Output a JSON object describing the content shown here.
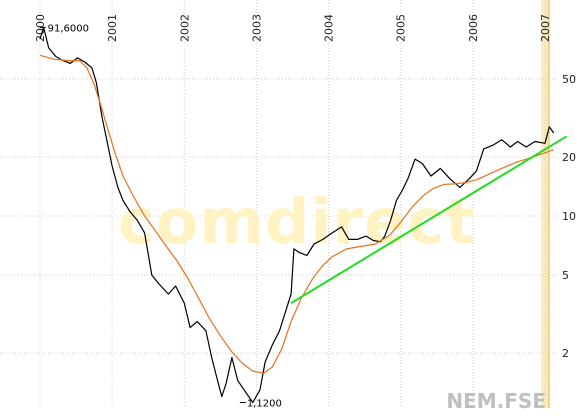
{
  "chart_data": {
    "type": "line",
    "title": "",
    "xlabel": "",
    "ylabel": "",
    "watermark": "comdirect",
    "ticker": "NEM.FSE",
    "x_tick_labels": [
      "2000",
      "2001",
      "2002",
      "2003",
      "2004",
      "2005",
      "2006",
      "2007"
    ],
    "y_scale": "log",
    "ylim": [
      1.05,
      115
    ],
    "xlim": [
      2000.0,
      2007.3
    ],
    "y_ticks": [
      2,
      5,
      10,
      20,
      50
    ],
    "y_tick_labels": [
      "2",
      "5",
      "10",
      "20",
      "50"
    ],
    "grid": true,
    "high_label": "91,6000",
    "low_label": "1,1200",
    "high": {
      "x": 2000.05,
      "y": 91.6
    },
    "low": {
      "x": 2002.95,
      "y": 1.12
    },
    "current_period_marker_x": 2007.0,
    "series": [
      {
        "key": "price",
        "color": "#000000",
        "points": [
          [
            2000.0,
            80
          ],
          [
            2000.05,
            91.6
          ],
          [
            2000.12,
            72
          ],
          [
            2000.22,
            65
          ],
          [
            2000.32,
            62
          ],
          [
            2000.42,
            60
          ],
          [
            2000.52,
            64
          ],
          [
            2000.62,
            61
          ],
          [
            2000.72,
            57
          ],
          [
            2000.78,
            48
          ],
          [
            2000.86,
            32
          ],
          [
            2000.93,
            24
          ],
          [
            2001.0,
            18
          ],
          [
            2001.08,
            14
          ],
          [
            2001.15,
            12
          ],
          [
            2001.25,
            10.5
          ],
          [
            2001.35,
            9.5
          ],
          [
            2001.45,
            8.2
          ],
          [
            2001.55,
            5.0
          ],
          [
            2001.65,
            4.5
          ],
          [
            2001.78,
            4.0
          ],
          [
            2001.88,
            4.4
          ],
          [
            2002.0,
            3.6
          ],
          [
            2002.08,
            2.7
          ],
          [
            2002.18,
            2.9
          ],
          [
            2002.3,
            2.6
          ],
          [
            2002.38,
            1.9
          ],
          [
            2002.45,
            1.5
          ],
          [
            2002.52,
            1.2
          ],
          [
            2002.58,
            1.4
          ],
          [
            2002.66,
            1.9
          ],
          [
            2002.74,
            1.45
          ],
          [
            2002.84,
            1.28
          ],
          [
            2002.95,
            1.12
          ],
          [
            2003.05,
            1.3
          ],
          [
            2003.12,
            1.8
          ],
          [
            2003.22,
            2.2
          ],
          [
            2003.32,
            2.6
          ],
          [
            2003.42,
            3.4
          ],
          [
            2003.48,
            4.0
          ],
          [
            2003.52,
            6.8
          ],
          [
            2003.6,
            6.5
          ],
          [
            2003.7,
            6.3
          ],
          [
            2003.8,
            7.2
          ],
          [
            2003.92,
            7.6
          ],
          [
            2004.05,
            8.2
          ],
          [
            2004.18,
            8.8
          ],
          [
            2004.28,
            7.6
          ],
          [
            2004.4,
            7.6
          ],
          [
            2004.52,
            7.9
          ],
          [
            2004.62,
            7.5
          ],
          [
            2004.72,
            7.4
          ],
          [
            2004.78,
            7.9
          ],
          [
            2004.86,
            9.5
          ],
          [
            2004.94,
            12.0
          ],
          [
            2005.02,
            13.5
          ],
          [
            2005.1,
            15.5
          ],
          [
            2005.2,
            19.5
          ],
          [
            2005.3,
            18.5
          ],
          [
            2005.42,
            16.0
          ],
          [
            2005.55,
            17.5
          ],
          [
            2005.68,
            15.5
          ],
          [
            2005.82,
            14.0
          ],
          [
            2005.95,
            15.5
          ],
          [
            2006.05,
            17.0
          ],
          [
            2006.15,
            22.0
          ],
          [
            2006.28,
            23.0
          ],
          [
            2006.4,
            24.5
          ],
          [
            2006.52,
            22.5
          ],
          [
            2006.62,
            24.0
          ],
          [
            2006.74,
            22.5
          ],
          [
            2006.86,
            24.0
          ],
          [
            2007.0,
            23.5
          ],
          [
            2007.06,
            28.5
          ],
          [
            2007.12,
            26.5
          ]
        ]
      },
      {
        "key": "moving-average",
        "color": "#e87020",
        "points": [
          [
            2000.0,
            66
          ],
          [
            2000.2,
            63
          ],
          [
            2000.4,
            62
          ],
          [
            2000.55,
            62
          ],
          [
            2000.65,
            57
          ],
          [
            2000.75,
            47
          ],
          [
            2000.85,
            36
          ],
          [
            2000.95,
            27
          ],
          [
            2001.05,
            20.5
          ],
          [
            2001.15,
            16
          ],
          [
            2001.3,
            12.5
          ],
          [
            2001.45,
            10
          ],
          [
            2001.6,
            8.4
          ],
          [
            2001.75,
            7.0
          ],
          [
            2001.9,
            5.9
          ],
          [
            2002.05,
            4.8
          ],
          [
            2002.2,
            3.8
          ],
          [
            2002.35,
            3.0
          ],
          [
            2002.5,
            2.45
          ],
          [
            2002.65,
            2.05
          ],
          [
            2002.8,
            1.78
          ],
          [
            2002.95,
            1.62
          ],
          [
            2003.1,
            1.58
          ],
          [
            2003.22,
            1.7
          ],
          [
            2003.35,
            2.1
          ],
          [
            2003.48,
            2.9
          ],
          [
            2003.62,
            3.8
          ],
          [
            2003.78,
            4.8
          ],
          [
            2003.92,
            5.6
          ],
          [
            2004.05,
            6.2
          ],
          [
            2004.25,
            6.8
          ],
          [
            2004.45,
            7.0
          ],
          [
            2004.65,
            7.2
          ],
          [
            2004.85,
            8.0
          ],
          [
            2005.0,
            9.3
          ],
          [
            2005.15,
            11.0
          ],
          [
            2005.3,
            12.6
          ],
          [
            2005.45,
            13.8
          ],
          [
            2005.6,
            14.5
          ],
          [
            2005.75,
            14.6
          ],
          [
            2005.9,
            14.8
          ],
          [
            2006.05,
            15.3
          ],
          [
            2006.2,
            16.2
          ],
          [
            2006.4,
            17.5
          ],
          [
            2006.6,
            18.8
          ],
          [
            2006.8,
            19.8
          ],
          [
            2007.0,
            21.0
          ],
          [
            2007.12,
            21.8
          ]
        ]
      },
      {
        "key": "trendline",
        "color": "#22dd22",
        "points": [
          [
            2003.48,
            3.6
          ],
          [
            2007.3,
            25.5
          ]
        ]
      }
    ]
  }
}
